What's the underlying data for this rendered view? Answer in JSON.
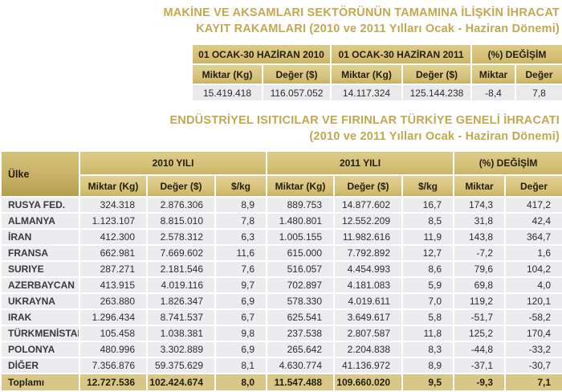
{
  "colors": {
    "title_gold": "#c2a851",
    "header_tan": "#d3bf74",
    "header_tan_dark": "#b59d4e",
    "row_gray": "#ececee",
    "total_row_tan": "#d9c78a"
  },
  "title1": {
    "line1": "MAKİNE VE AKSAMLARI SEKTÖRÜNÜN TAMAMINA İLİŞKİN İHRACAT",
    "line2": "KAYIT RAKAMLARI  (2010 ve 2011 Yılları Ocak - Haziran Dönemi)"
  },
  "table1": {
    "group_headers": [
      "01 OCAK-30 HAZİRAN 2010",
      "01 OCAK-30 HAZİRAN 2011",
      "(%) DEĞİŞİM"
    ],
    "sub_headers": [
      "Miktar (Kg)",
      "Değer ($)",
      "Miktar (Kg)",
      "Değer ($)",
      "Miktar",
      "Değer"
    ],
    "values": [
      "15.419.418",
      "116.057.052",
      "14.117.324",
      "125.144.238",
      "-8,4",
      "7,8"
    ]
  },
  "title2": {
    "line1": "ENDÜSTRİYEL ISITICILAR VE FIRINLAR TÜRKİYE GENELİ İHRACATI",
    "line2": "(2010 ve 2011 Yılları Ocak - Haziran Dönemi)"
  },
  "table2": {
    "country_header": "Ülke",
    "group_headers": [
      "2010 YILI",
      "2011 YILI",
      "(%) DEĞİŞİM"
    ],
    "sub_headers": [
      "Miktar (Kg)",
      "Değer ($)",
      "$/kg",
      "Miktar (Kg)",
      "Değer ($)",
      "$/kg",
      "Miktar",
      "Değer"
    ],
    "rows": [
      {
        "country": "RUSYA FED.",
        "values": [
          "324.318",
          "2.876.306",
          "8,9",
          "889.753",
          "14.877.602",
          "16,7",
          "174,3",
          "417,2"
        ]
      },
      {
        "country": "ALMANYA",
        "values": [
          "1.123.107",
          "8.815.010",
          "7,8",
          "1.480.801",
          "12.552.209",
          "8,5",
          "31,8",
          "42,4"
        ]
      },
      {
        "country": "İRAN",
        "values": [
          "412.300",
          "2.578.312",
          "6,3",
          "1.005.155",
          "11.982.616",
          "11,9",
          "143,8",
          "364,7"
        ]
      },
      {
        "country": "FRANSA",
        "values": [
          "662.981",
          "7.669.602",
          "11,6",
          "615.000",
          "7.792.892",
          "12,7",
          "-7,2",
          "1,6"
        ]
      },
      {
        "country": "SURIYE",
        "values": [
          "287.271",
          "2.181.546",
          "7,6",
          "516.057",
          "4.454.993",
          "8,6",
          "79,6",
          "104,2"
        ]
      },
      {
        "country": "AZERBAYCAN",
        "values": [
          "413.915",
          "4.019.116",
          "9,7",
          "702.897",
          "4.181.083",
          "5,9",
          "69,8",
          "4,0"
        ]
      },
      {
        "country": "UKRAYNA",
        "values": [
          "263.880",
          "1.826.347",
          "6,9",
          "578.330",
          "4.019.611",
          "7,0",
          "119,2",
          "120,1"
        ]
      },
      {
        "country": "IRAK",
        "values": [
          "1.296.434",
          "8.741.537",
          "6,7",
          "625.541",
          "3.649.617",
          "5,8",
          "-51,7",
          "-58,2"
        ]
      },
      {
        "country": "TÜRKMENİSTAN",
        "values": [
          "105.458",
          "1.038.381",
          "9,8",
          "237.538",
          "2.807.587",
          "11,8",
          "125,2",
          "170,4"
        ]
      },
      {
        "country": "POLONYA",
        "values": [
          "480.996",
          "3.302.889",
          "6,9",
          "265.642",
          "2.204.838",
          "8,3",
          "-44,8",
          "-33,2"
        ]
      },
      {
        "country": "DİĞER",
        "values": [
          "7.356.876",
          "59.375.629",
          "8,1",
          "4.630.774",
          "41.136.972",
          "8,9",
          "-37,1",
          "-30,7"
        ]
      }
    ],
    "total_row": {
      "country": "Toplamı",
      "values": [
        "12.727.536",
        "102.424.674",
        "8,0",
        "11.547.488",
        "109.660.020",
        "9,5",
        "-9,3",
        "7,1"
      ]
    }
  }
}
